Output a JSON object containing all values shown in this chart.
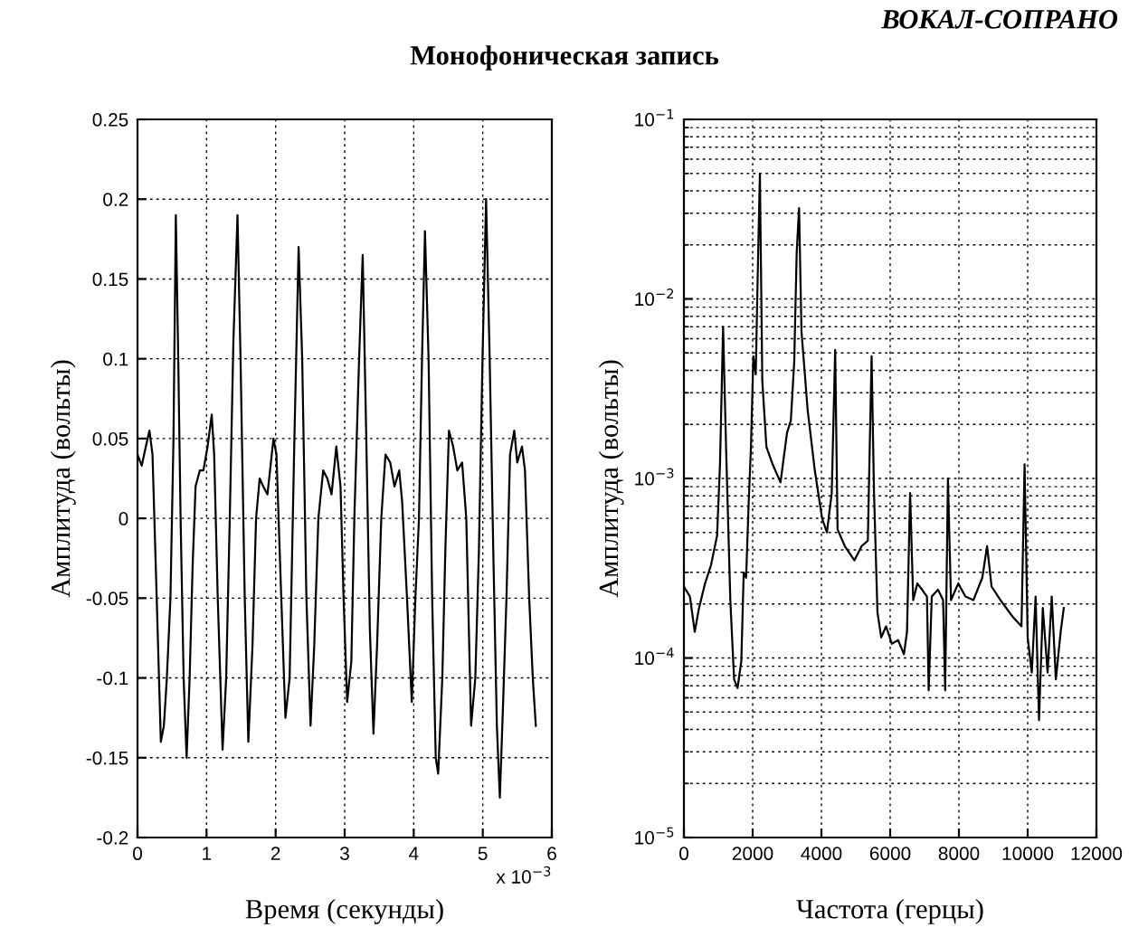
{
  "chart_data": [
    {
      "type": "line",
      "title": "Монофоническая запись",
      "annotations": [
        "ВОКАЛ-СОПРАНО",
        "x 10$^{−3}$"
      ],
      "xlabel": "Время (секунды)",
      "ylabel": "Амплитуда (вольты)",
      "grid": true,
      "xlim": [
        0,
        6
      ],
      "xticks": [
        0,
        1,
        2,
        3,
        4,
        5,
        6
      ],
      "ylim": [
        -0.2,
        0.25
      ],
      "yticks": [
        -0.2,
        -0.15,
        -0.1,
        -0.05,
        0,
        0.05,
        0.1,
        0.15,
        0.2,
        0.25
      ],
      "series": [
        {
          "color": "#000000",
          "x": [
            0,
            0.061,
            0.121,
            0.173,
            0.217,
            0.278,
            0.338,
            0.382,
            0.425,
            0.477,
            0.521,
            0.555,
            0.59,
            0.624,
            0.668,
            0.711,
            0.755,
            0.798,
            0.841,
            0.902,
            0.954,
            1.015,
            1.075,
            1.11,
            1.162,
            1.232,
            1.284,
            1.336,
            1.388,
            1.448,
            1.492,
            1.553,
            1.605,
            1.665,
            1.717,
            1.769,
            1.821,
            1.882,
            1.969,
            2.012,
            2.082,
            2.142,
            2.203,
            2.272,
            2.333,
            2.385,
            2.446,
            2.506,
            2.559,
            2.619,
            2.689,
            2.749,
            2.81,
            2.879,
            2.94,
            2.984,
            3.036,
            3.096,
            3.14,
            3.209,
            3.261,
            3.313,
            3.365,
            3.417,
            3.469,
            3.53,
            3.591,
            3.66,
            3.721,
            3.79,
            3.833,
            3.903,
            3.972,
            4.024,
            4.076,
            4.12,
            4.163,
            4.215,
            4.267,
            4.319,
            4.354,
            4.414,
            4.458,
            4.51,
            4.571,
            4.631,
            4.701,
            4.761,
            4.831,
            4.892,
            4.944,
            4.996,
            5.048,
            5.1,
            5.152,
            5.204,
            5.247,
            5.291,
            5.343,
            5.395,
            5.456,
            5.499,
            5.568,
            5.611,
            5.672,
            5.724,
            5.768
          ],
          "values": [
            0.04,
            0.033,
            0.045,
            0.055,
            0.04,
            -0.05,
            -0.14,
            -0.13,
            -0.1,
            -0.05,
            0.05,
            0.19,
            0.1,
            0,
            -0.1,
            -0.15,
            -0.1,
            -0.03,
            0.02,
            0.03,
            0.03,
            0.045,
            0.065,
            0.04,
            -0.05,
            -0.145,
            -0.1,
            0,
            0.11,
            0.19,
            0.1,
            -0.05,
            -0.14,
            -0.08,
            0,
            0.025,
            0.02,
            0.015,
            0.05,
            0.04,
            -0.05,
            -0.125,
            -0.1,
            0.05,
            0.17,
            0.1,
            -0.05,
            -0.13,
            -0.08,
            0,
            0.03,
            0.025,
            0.015,
            0.045,
            0.02,
            -0.05,
            -0.115,
            -0.09,
            0,
            0.1,
            0.165,
            0.05,
            -0.07,
            -0.135,
            -0.08,
            0,
            0.04,
            0.035,
            0.02,
            0.03,
            0.01,
            -0.05,
            -0.115,
            -0.05,
            0,
            0.1,
            0.18,
            0.1,
            -0.05,
            -0.15,
            -0.16,
            -0.1,
            -0.02,
            0.055,
            0.045,
            0.03,
            0.035,
            0,
            -0.13,
            -0.1,
            -0.02,
            0.1,
            0.2,
            0.1,
            -0.02,
            -0.13,
            -0.175,
            -0.12,
            -0.05,
            0.04,
            0.055,
            0.035,
            0.045,
            0.03,
            -0.05,
            -0.1,
            -0.13
          ]
        }
      ]
    },
    {
      "type": "line",
      "xlabel": "Частота (герцы)",
      "ylabel": "Амплитуда (вольты)",
      "grid": true,
      "log": "y",
      "xlim": [
        0,
        12000
      ],
      "xticks": [
        0,
        2000,
        4000,
        6000,
        8000,
        10000,
        12000
      ],
      "ylim": [
        1e-05,
        0.1
      ],
      "yticks": [
        {
          "value": 1e-05,
          "label": "10$^{−5}$"
        },
        {
          "value": 0.0001,
          "label": "10$^{−4}$"
        },
        {
          "value": 0.001,
          "label": "10$^{−3}$"
        },
        {
          "value": 0.01,
          "label": "10$^{−2}$"
        },
        {
          "value": 0.1,
          "label": "10$^{−1}$"
        }
      ],
      "series": [
        {
          "color": "#000000",
          "x": [
            0,
            175,
            315,
            440,
            615,
            790,
            965,
            1050,
            1140,
            1230,
            1350,
            1460,
            1560,
            1670,
            1740,
            1810,
            1880,
            1950,
            2020,
            2090,
            2160,
            2210,
            2280,
            2400,
            2580,
            2810,
            3000,
            3110,
            3210,
            3280,
            3350,
            3420,
            3600,
            3810,
            4020,
            4160,
            4300,
            4400,
            4470,
            4680,
            4960,
            5170,
            5350,
            5460,
            5530,
            5630,
            5740,
            5880,
            6050,
            6230,
            6400,
            6490,
            6580,
            6670,
            6790,
            6930,
            7070,
            7120,
            7210,
            7390,
            7540,
            7600,
            7680,
            7770,
            7980,
            8190,
            8420,
            8680,
            8820,
            8950,
            9210,
            9560,
            9820,
            9910,
            10000,
            10120,
            10230,
            10330,
            10440,
            10580,
            10700,
            10820,
            10960,
            11050
          ],
          "values": [
            0.00025,
            0.00022,
            0.00014,
            0.00019,
            0.00026,
            0.00033,
            0.00048,
            0.0012,
            0.007,
            0.0014,
            0.00021,
            7.6e-05,
            6.8e-05,
            9.6e-05,
            0.0003,
            0.00028,
            0.0007,
            0.0015,
            0.0048,
            0.0038,
            0.018,
            0.05,
            0.0035,
            0.0015,
            0.0012,
            0.00095,
            0.0018,
            0.0021,
            0.0045,
            0.018,
            0.032,
            0.0066,
            0.0024,
            0.0011,
            0.0006,
            0.0005,
            0.00083,
            0.0052,
            0.00052,
            0.00042,
            0.00035,
            0.00042,
            0.00045,
            0.0048,
            0.00083,
            0.00018,
            0.00013,
            0.00015,
            0.00012,
            0.000126,
            0.000105,
            0.00014,
            0.00083,
            0.00021,
            0.00026,
            0.00024,
            0.00022,
            6.6e-05,
            0.00022,
            0.00024,
            0.00021,
            6.6e-05,
            0.001,
            0.00021,
            0.00026,
            0.00022,
            0.00021,
            0.00028,
            0.00042,
            0.00025,
            0.00021,
            0.00017,
            0.00015,
            0.0012,
            0.00013,
            8.3e-05,
            0.00022,
            4.5e-05,
            0.00019,
            8.3e-05,
            0.00022,
            7.6e-05,
            0.00014,
            0.00019
          ]
        }
      ]
    }
  ]
}
